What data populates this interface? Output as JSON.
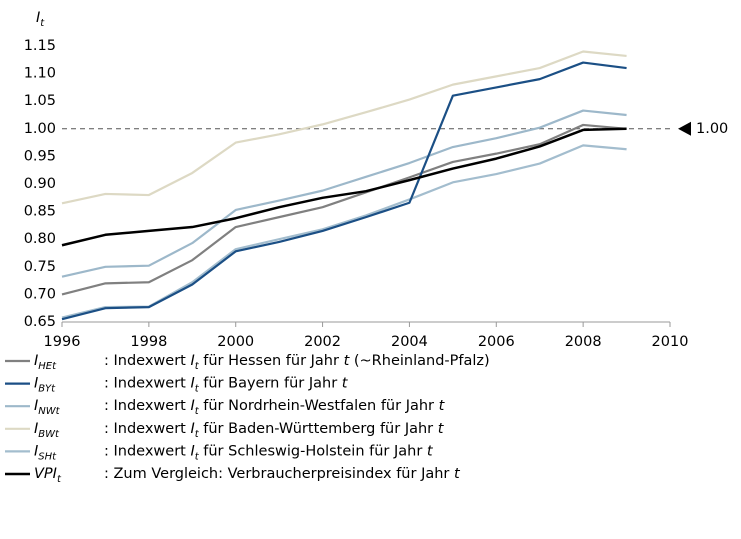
{
  "chart_data": {
    "type": "line",
    "ylabel": "I",
    "ylabel_sub": "t",
    "x": [
      1996,
      1997,
      1998,
      1999,
      2000,
      2001,
      2002,
      2003,
      2004,
      2005,
      2006,
      2007,
      2008,
      2009
    ],
    "xlim": [
      1996,
      2010
    ],
    "xticks": [
      1996,
      1998,
      2000,
      2002,
      2004,
      2006,
      2008,
      2010
    ],
    "ylim": [
      0.65,
      1.15
    ],
    "yticks": [
      0.65,
      {
        "value": 0.7,
        "label": "0.70"
      },
      0.75,
      {
        "value": 0.8,
        "label": "0.80"
      },
      0.85,
      {
        "value": 0.9,
        "label": "0.90"
      },
      0.95,
      {
        "value": 1,
        "label": "1.00"
      },
      1.05,
      {
        "value": 1.1,
        "label": "1.10"
      },
      1.15
    ],
    "reference_line": {
      "value": 1,
      "label": "1.00"
    },
    "series": [
      {
        "name": "I",
        "name_sub": "HEt",
        "color": "#808080",
        "description": [
          {
            "text": ": Indexwert "
          },
          {
            "text": "I",
            "style": "italic"
          },
          {
            "text": "t",
            "style": "sub"
          },
          {
            "text": " für Hessen für Jahr "
          },
          {
            "text": "t",
            "style": "italic"
          },
          {
            "text": " (~Rheinland-Pfalz)"
          }
        ],
        "values": [
          0.7,
          0.72,
          0.722,
          0.762,
          0.822,
          0.84,
          0.858,
          0.885,
          0.912,
          0.94,
          0.955,
          0.972,
          1.007,
          1.0
        ]
      },
      {
        "name": "I",
        "name_sub": "BYt",
        "color": "#1b4f85",
        "description": [
          {
            "text": ": Indexwert "
          },
          {
            "text": "I",
            "style": "italic"
          },
          {
            "text": "t",
            "style": "sub"
          },
          {
            "text": " für Bayern für Jahr "
          },
          {
            "text": "t",
            "style": "italic"
          }
        ],
        "values": [
          0.655,
          0.675,
          0.677,
          0.718,
          0.778,
          0.795,
          0.815,
          0.84,
          0.866,
          1.06,
          1.075,
          1.09,
          1.12,
          1.11
        ]
      },
      {
        "name": "I",
        "name_sub": "NWt",
        "color": "#9db8ca",
        "description": [
          {
            "text": ": Indexwert "
          },
          {
            "text": "I",
            "style": "italic"
          },
          {
            "text": "t",
            "style": "sub"
          },
          {
            "text": " für Nordrhein-Westfalen für Jahr "
          },
          {
            "text": "t",
            "style": "italic"
          }
        ],
        "values": [
          0.732,
          0.75,
          0.752,
          0.793,
          0.853,
          0.87,
          0.888,
          0.913,
          0.938,
          0.967,
          0.983,
          1.002,
          1.033,
          1.025
        ]
      },
      {
        "name": "I",
        "name_sub": "BWt",
        "color": "#ddd9c4",
        "description": [
          {
            "text": ": Indexwert "
          },
          {
            "text": "I",
            "style": "italic"
          },
          {
            "text": "t",
            "style": "sub"
          },
          {
            "text": " für Baden-Württemberg für Jahr "
          },
          {
            "text": "t",
            "style": "italic"
          }
        ],
        "values": [
          0.865,
          0.882,
          0.88,
          0.92,
          0.975,
          0.99,
          1.008,
          1.03,
          1.053,
          1.08,
          1.095,
          1.11,
          1.14,
          1.132
        ]
      },
      {
        "name": "I",
        "name_sub": "SHt",
        "color": "#a3bdce",
        "description": [
          {
            "text": ": Indexwert "
          },
          {
            "text": "I",
            "style": "italic"
          },
          {
            "text": "t",
            "style": "sub"
          },
          {
            "text": " für Schleswig-Holstein für Jahr "
          },
          {
            "text": "t",
            "style": "italic"
          }
        ],
        "values": [
          0.658,
          0.677,
          0.678,
          0.722,
          0.782,
          0.8,
          0.818,
          0.843,
          0.872,
          0.903,
          0.918,
          0.937,
          0.97,
          0.963
        ]
      },
      {
        "name": "VPI",
        "name_sub": "t",
        "color": "#000000",
        "description": [
          {
            "text": ": Zum Vergleich: Verbraucherpreisindex für Jahr "
          },
          {
            "text": "t",
            "style": "italic"
          }
        ],
        "values": [
          0.789,
          0.808,
          0.815,
          0.822,
          0.838,
          0.858,
          0.875,
          0.887,
          0.907,
          0.928,
          0.946,
          0.968,
          0.998,
          1.0
        ]
      }
    ]
  }
}
